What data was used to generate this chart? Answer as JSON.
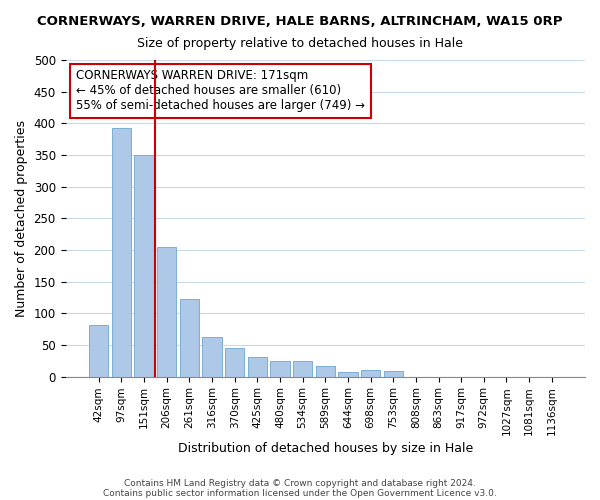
{
  "title1": "CORNERWAYS, WARREN DRIVE, HALE BARNS, ALTRINCHAM, WA15 0RP",
  "title2": "Size of property relative to detached houses in Hale",
  "xlabel": "Distribution of detached houses by size in Hale",
  "ylabel": "Number of detached properties",
  "bar_values": [
    82,
    393,
    350,
    205,
    123,
    63,
    45,
    31,
    24,
    25,
    17,
    8,
    11,
    9,
    0,
    0,
    0,
    0,
    0,
    0,
    0
  ],
  "bar_labels": [
    "42sqm",
    "97sqm",
    "151sqm",
    "206sqm",
    "261sqm",
    "316sqm",
    "370sqm",
    "425sqm",
    "480sqm",
    "534sqm",
    "589sqm",
    "644sqm",
    "698sqm",
    "753sqm",
    "808sqm",
    "863sqm",
    "917sqm",
    "972sqm",
    "1027sqm",
    "1081sqm",
    "1136sqm"
  ],
  "bar_color": "#aec9e8",
  "bar_edge_color": "#7bafd4",
  "vline_index": 2.5,
  "vline_color": "#cc0000",
  "annotation_title": "CORNERWAYS WARREN DRIVE: 171sqm",
  "annotation_line1": "← 45% of detached houses are smaller (610)",
  "annotation_line2": "55% of semi-detached houses are larger (749) →",
  "annotation_box_color": "#ffffff",
  "annotation_box_edge": "#cc0000",
  "ylim": [
    0,
    500
  ],
  "yticks": [
    0,
    50,
    100,
    150,
    200,
    250,
    300,
    350,
    400,
    450,
    500
  ],
  "footer1": "Contains HM Land Registry data © Crown copyright and database right 2024.",
  "footer2": "Contains public sector information licensed under the Open Government Licence v3.0.",
  "bg_color": "#ffffff",
  "grid_color": "#c8d8e8"
}
